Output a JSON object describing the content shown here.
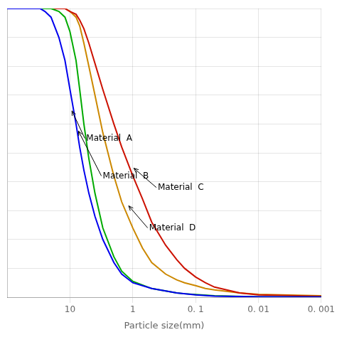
{
  "chart_data": {
    "type": "line",
    "xlabel": "Particle size(mm)",
    "log": "x",
    "grid": true,
    "tick_labels": "x",
    "xlim": [
      100,
      0.001
    ],
    "ylim": [
      0,
      100
    ],
    "xticks": [
      10,
      1,
      {
        "value": 0.1,
        "label": "0. 1"
      },
      {
        "value": 0.01,
        "label": "0. 01"
      },
      {
        "value": 0.001,
        "label": "0. 001"
      }
    ],
    "yticks": [
      0,
      10,
      20,
      30,
      40,
      50,
      60,
      70,
      80,
      90,
      100
    ],
    "series": [
      {
        "color": "#0000ee",
        "x": [
          100,
          60,
          40,
          30,
          25,
          20,
          15,
          12,
          10,
          8,
          7,
          6,
          5,
          4,
          3,
          2,
          1.5,
          1,
          0.5,
          0.2,
          0.1,
          0.05,
          0.01,
          0.001
        ],
        "values": [
          100,
          100,
          100,
          100,
          99,
          97,
          90,
          82,
          72,
          60,
          52,
          44,
          36,
          28,
          20,
          12,
          8,
          5,
          3,
          1.5,
          0.8,
          0.4,
          0.1,
          0.05
        ]
      },
      {
        "color": "#00aa00",
        "x": [
          100,
          60,
          40,
          30,
          25,
          20,
          15,
          12,
          10,
          8,
          7,
          6,
          5,
          4,
          3,
          2,
          1.5,
          1,
          0.5,
          0.2,
          0.15,
          0.1,
          0.05,
          0.01,
          0.001
        ],
        "values": [
          100,
          100,
          100,
          100,
          100,
          100,
          99,
          97,
          92,
          82,
          72,
          60,
          48,
          36,
          24,
          14,
          9,
          5.5,
          3,
          1.5,
          1.2,
          0.9,
          0.5,
          0.15,
          0.05
        ]
      },
      {
        "color": "#cc1100",
        "x": [
          100,
          60,
          40,
          30,
          25,
          20,
          15,
          12,
          10,
          8,
          7,
          6,
          5,
          4,
          3,
          2,
          1.5,
          1,
          0.7,
          0.5,
          0.3,
          0.2,
          0.15,
          0.1,
          0.07,
          0.05,
          0.02,
          0.01,
          0.001
        ],
        "values": [
          100,
          100,
          100,
          100,
          100,
          100,
          100,
          100,
          99,
          98,
          96,
          93,
          88,
          81,
          72,
          60,
          52,
          42,
          34,
          26,
          18,
          13,
          10,
          7,
          5,
          3.5,
          1.5,
          0.8,
          0.3
        ]
      },
      {
        "color": "#cc8800",
        "x": [
          100,
          60,
          40,
          30,
          25,
          20,
          15,
          12,
          10,
          8,
          7,
          6,
          5,
          4,
          3,
          2,
          1.5,
          1,
          0.7,
          0.5,
          0.3,
          0.2,
          0.15,
          0.1,
          0.07,
          0.05,
          0.02,
          0.01,
          0.001
        ],
        "values": [
          100,
          100,
          100,
          100,
          100,
          100,
          100,
          100,
          99,
          97,
          94,
          88,
          80,
          70,
          57,
          42,
          33,
          24,
          17,
          12,
          8,
          6,
          5,
          4,
          3,
          2.5,
          1.5,
          1,
          0.5
        ]
      }
    ],
    "annotations": [
      {
        "text": "Material  A",
        "xy": [
          9.5,
          65
        ],
        "xytext": [
          5.5,
          55
        ]
      },
      {
        "text": "Material  B",
        "xy": [
          7.5,
          58
        ],
        "xytext": [
          3.0,
          42
        ]
      },
      {
        "text": "Material  C",
        "xy": [
          1.0,
          45
        ],
        "xytext": [
          0.4,
          38
        ]
      },
      {
        "text": "Material  D",
        "xy": [
          1.2,
          32
        ],
        "xytext": [
          0.55,
          24
        ]
      }
    ]
  }
}
